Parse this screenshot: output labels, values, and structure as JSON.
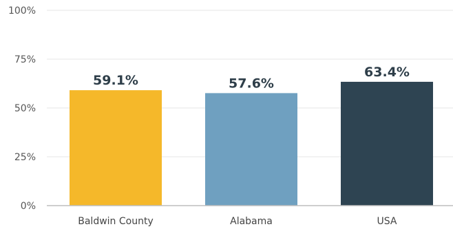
{
  "chart_data": {
    "type": "bar",
    "categories": [
      "Baldwin County",
      "Alabama",
      "USA"
    ],
    "values": [
      59.1,
      57.6,
      63.4
    ],
    "data_labels": [
      "59.1%",
      "57.6%",
      "63.4%"
    ],
    "colors": [
      "#f5b82a",
      "#6fa0c0",
      "#2e4452"
    ],
    "title": "",
    "xlabel": "",
    "ylabel": "",
    "ylim": [
      0,
      100
    ],
    "yticks": [
      0,
      25,
      50,
      75,
      100
    ],
    "ytick_labels": [
      "0%",
      "25%",
      "50%",
      "75%",
      "100%"
    ],
    "grid": true,
    "legend": "none"
  }
}
